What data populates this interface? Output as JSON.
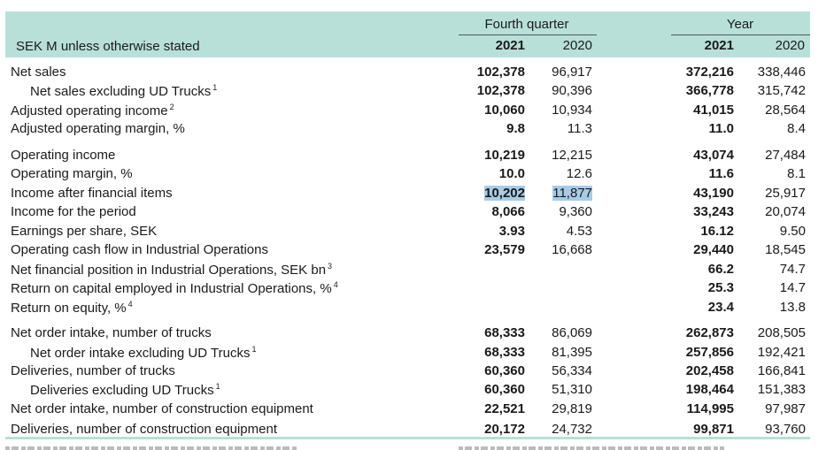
{
  "header": {
    "unit_label": "SEK M unless otherwise stated",
    "groups": [
      {
        "title": "Fourth quarter",
        "years": [
          "2021",
          "2020"
        ]
      },
      {
        "title": "Year",
        "years": [
          "2021",
          "2020"
        ]
      }
    ]
  },
  "rows": [
    {
      "label": "Net sales",
      "sup": "",
      "values": [
        "102,378",
        "96,917",
        "372,216",
        "338,446"
      ]
    },
    {
      "label": "Net sales excluding UD Trucks",
      "sup": "1",
      "values": [
        "102,378",
        "90,396",
        "366,778",
        "315,742"
      ]
    },
    {
      "label": "Adjusted operating income",
      "sup": "2",
      "values": [
        "10,060",
        "10,934",
        "41,015",
        "28,564"
      ]
    },
    {
      "label": "Adjusted operating margin, %",
      "sup": "",
      "values": [
        "9.8",
        "11.3",
        "11.0",
        "8.4"
      ]
    },
    {
      "label": "Operating income",
      "sup": "",
      "values": [
        "10,219",
        "12,215",
        "43,074",
        "27,484"
      ]
    },
    {
      "label": "Operating margin, %",
      "sup": "",
      "values": [
        "10.0",
        "12.6",
        "11.6",
        "8.1"
      ]
    },
    {
      "label": "Income after financial items",
      "sup": "",
      "values": [
        "10,202",
        "11,877",
        "43,190",
        "25,917"
      ]
    },
    {
      "label": "Income for the period",
      "sup": "",
      "values": [
        "8,066",
        "9,360",
        "33,243",
        "20,074"
      ]
    },
    {
      "label": "Earnings per share, SEK",
      "sup": "",
      "values": [
        "3.93",
        "4.53",
        "16.12",
        "9.50"
      ]
    },
    {
      "label": "Operating cash flow in Industrial Operations",
      "sup": "",
      "values": [
        "23,579",
        "16,668",
        "29,440",
        "18,545"
      ]
    },
    {
      "label": "Net financial position in Industrial Operations, SEK bn",
      "sup": "3",
      "values": [
        "",
        "",
        "66.2",
        "74.7"
      ]
    },
    {
      "label": "Return on capital employed in Industrial Operations, %",
      "sup": "4",
      "values": [
        "",
        "",
        "25.3",
        "14.7"
      ]
    },
    {
      "label": "Return on equity, %",
      "sup": "4",
      "values": [
        "",
        "",
        "23.4",
        "13.8"
      ]
    },
    {
      "label": "Net order intake, number of trucks",
      "sup": "",
      "values": [
        "68,333",
        "86,069",
        "262,873",
        "208,505"
      ]
    },
    {
      "label": "Net order intake excluding UD Trucks",
      "sup": "1",
      "values": [
        "68,333",
        "81,395",
        "257,856",
        "192,421"
      ]
    },
    {
      "label": "Deliveries, number of trucks",
      "sup": "",
      "values": [
        "60,360",
        "56,334",
        "202,458",
        "166,841"
      ]
    },
    {
      "label": "Deliveries excluding UD Trucks",
      "sup": "1",
      "values": [
        "60,360",
        "51,310",
        "198,464",
        "151,383"
      ]
    },
    {
      "label": "Net order intake, number of construction equipment",
      "sup": "",
      "values": [
        "22,521",
        "29,819",
        "114,995",
        "97,987"
      ]
    },
    {
      "label": "Deliveries, number of construction equipment",
      "sup": "",
      "values": [
        "20,172",
        "24,732",
        "99,871",
        "93,760"
      ]
    }
  ],
  "colors": {
    "header_bg": "#b8e0d9",
    "highlight": "#a9cbe8"
  }
}
